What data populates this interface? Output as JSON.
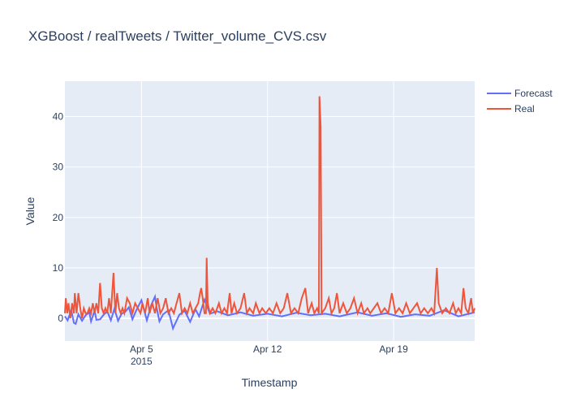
{
  "chart_data": {
    "type": "line",
    "title": "XGBoost / realTweets / Twitter_volume_CVS.csv",
    "xlabel": "Timestamp",
    "ylabel": "Value",
    "x_range": [
      "2015-03-31T18:00",
      "2015-04-23T12:00"
    ],
    "xlim_days": [
      -4.25,
      18.5
    ],
    "ylim": [
      -4.5,
      47
    ],
    "y_ticks": [
      0,
      10,
      20,
      30,
      40
    ],
    "x_ticks": [
      {
        "day": 0,
        "label": "Apr 5",
        "sublabel": "2015"
      },
      {
        "day": 7,
        "label": "Apr 12",
        "sublabel": ""
      },
      {
        "day": 14,
        "label": "Apr 19",
        "sublabel": ""
      }
    ],
    "grid": true,
    "legend_position": "top-right",
    "series": [
      {
        "name": "Forecast",
        "color": "#636efa",
        "points": [
          [
            -4.25,
            0.4
          ],
          [
            -4.1,
            -0.4
          ],
          [
            -3.9,
            1.6
          ],
          [
            -3.75,
            -0.9
          ],
          [
            -3.65,
            -1.1
          ],
          [
            -3.5,
            0.8
          ],
          [
            -3.3,
            -0.5
          ],
          [
            -3.1,
            0.6
          ],
          [
            -2.9,
            1.2
          ],
          [
            -2.8,
            -0.6
          ],
          [
            -2.6,
            1.5
          ],
          [
            -2.5,
            -0.3
          ],
          [
            -2.3,
            -0.2
          ],
          [
            -2.1,
            0.7
          ],
          [
            -1.9,
            1.4
          ],
          [
            -1.7,
            -0.4
          ],
          [
            -1.5,
            1.9
          ],
          [
            -1.3,
            -0.5
          ],
          [
            -1.1,
            0.9
          ],
          [
            -0.9,
            1.3
          ],
          [
            -0.7,
            2.2
          ],
          [
            -0.5,
            -0.2
          ],
          [
            -0.3,
            1.5
          ],
          [
            0.0,
            3.6
          ],
          [
            0.3,
            -0.4
          ],
          [
            0.55,
            2.7
          ],
          [
            0.75,
            4.3
          ],
          [
            0.85,
            2.0
          ],
          [
            1.0,
            -0.6
          ],
          [
            1.2,
            0.8
          ],
          [
            1.5,
            1.6
          ],
          [
            1.75,
            -2.0
          ],
          [
            1.8,
            -1.6
          ],
          [
            2.1,
            0.7
          ],
          [
            2.4,
            1.5
          ],
          [
            2.7,
            -0.7
          ],
          [
            3.0,
            1.8
          ],
          [
            3.2,
            0.4
          ],
          [
            3.5,
            3.7
          ],
          [
            3.8,
            0.9
          ],
          [
            4.2,
            1.4
          ],
          [
            4.8,
            0.6
          ],
          [
            5.5,
            1.2
          ],
          [
            6.2,
            0.5
          ],
          [
            7.0,
            0.9
          ],
          [
            7.8,
            0.4
          ],
          [
            8.6,
            1.1
          ],
          [
            9.4,
            0.6
          ],
          [
            10.2,
            0.9
          ],
          [
            11.0,
            0.4
          ],
          [
            12.0,
            1.2
          ],
          [
            12.8,
            0.5
          ],
          [
            13.6,
            1.0
          ],
          [
            14.4,
            0.3
          ],
          [
            15.2,
            0.8
          ],
          [
            16.0,
            0.5
          ],
          [
            16.8,
            1.6
          ],
          [
            17.6,
            0.4
          ],
          [
            18.5,
            1.2
          ]
        ]
      },
      {
        "name": "Real",
        "color": "#ef553b",
        "points": [
          [
            -4.25,
            1
          ],
          [
            -4.2,
            4
          ],
          [
            -4.12,
            1
          ],
          [
            -4.05,
            3
          ],
          [
            -3.95,
            0
          ],
          [
            -3.85,
            3
          ],
          [
            -3.75,
            1
          ],
          [
            -3.7,
            5
          ],
          [
            -3.6,
            1
          ],
          [
            -3.5,
            5
          ],
          [
            -3.4,
            2
          ],
          [
            -3.3,
            0
          ],
          [
            -3.2,
            2
          ],
          [
            -3.1,
            1
          ],
          [
            -3.0,
            1
          ],
          [
            -2.9,
            2
          ],
          [
            -2.8,
            1
          ],
          [
            -2.7,
            3
          ],
          [
            -2.6,
            1
          ],
          [
            -2.5,
            3
          ],
          [
            -2.4,
            1
          ],
          [
            -2.3,
            7
          ],
          [
            -2.2,
            2
          ],
          [
            -2.1,
            1
          ],
          [
            -2.0,
            2
          ],
          [
            -1.9,
            1
          ],
          [
            -1.8,
            4
          ],
          [
            -1.7,
            1
          ],
          [
            -1.55,
            9
          ],
          [
            -1.45,
            1
          ],
          [
            -1.35,
            5
          ],
          [
            -1.25,
            2
          ],
          [
            -1.15,
            1
          ],
          [
            -1.05,
            2
          ],
          [
            -0.95,
            1
          ],
          [
            -0.8,
            4
          ],
          [
            -0.65,
            3
          ],
          [
            -0.5,
            1
          ],
          [
            -0.35,
            3
          ],
          [
            -0.2,
            2
          ],
          [
            -0.05,
            1
          ],
          [
            0.05,
            3
          ],
          [
            0.2,
            1
          ],
          [
            0.35,
            4
          ],
          [
            0.45,
            1
          ],
          [
            0.6,
            3
          ],
          [
            0.75,
            1
          ],
          [
            0.9,
            4
          ],
          [
            1.05,
            1
          ],
          [
            1.2,
            2
          ],
          [
            1.35,
            4
          ],
          [
            1.5,
            1
          ],
          [
            1.65,
            2
          ],
          [
            1.8,
            1
          ],
          [
            1.95,
            3
          ],
          [
            2.1,
            5
          ],
          [
            2.25,
            1
          ],
          [
            2.4,
            2
          ],
          [
            2.55,
            1
          ],
          [
            2.7,
            3
          ],
          [
            2.85,
            1
          ],
          [
            3.0,
            2
          ],
          [
            3.15,
            3
          ],
          [
            3.25,
            5
          ],
          [
            3.32,
            6
          ],
          [
            3.4,
            4
          ],
          [
            3.5,
            1
          ],
          [
            3.58,
            1
          ],
          [
            3.62,
            12
          ],
          [
            3.68,
            3
          ],
          [
            3.8,
            1
          ],
          [
            3.95,
            2
          ],
          [
            4.1,
            1
          ],
          [
            4.3,
            3
          ],
          [
            4.45,
            1
          ],
          [
            4.6,
            2
          ],
          [
            4.75,
            1
          ],
          [
            4.9,
            5
          ],
          [
            5.0,
            1
          ],
          [
            5.15,
            3
          ],
          [
            5.3,
            1
          ],
          [
            5.5,
            2
          ],
          [
            5.7,
            5
          ],
          [
            5.85,
            1
          ],
          [
            6.0,
            2
          ],
          [
            6.2,
            1
          ],
          [
            6.35,
            3
          ],
          [
            6.55,
            1
          ],
          [
            6.7,
            2
          ],
          [
            6.9,
            1
          ],
          [
            7.1,
            2
          ],
          [
            7.3,
            1
          ],
          [
            7.5,
            3
          ],
          [
            7.7,
            1
          ],
          [
            7.9,
            2
          ],
          [
            8.1,
            5
          ],
          [
            8.3,
            1
          ],
          [
            8.5,
            2
          ],
          [
            8.7,
            1
          ],
          [
            8.9,
            4
          ],
          [
            9.1,
            6
          ],
          [
            9.25,
            1
          ],
          [
            9.45,
            3
          ],
          [
            9.6,
            1
          ],
          [
            9.75,
            2
          ],
          [
            9.85,
            1
          ],
          [
            9.88,
            44
          ],
          [
            9.95,
            38
          ],
          [
            10.0,
            1
          ],
          [
            10.2,
            2
          ],
          [
            10.4,
            4
          ],
          [
            10.55,
            1
          ],
          [
            10.7,
            2
          ],
          [
            10.85,
            5
          ],
          [
            11.0,
            1
          ],
          [
            11.2,
            3
          ],
          [
            11.4,
            1
          ],
          [
            11.6,
            2
          ],
          [
            11.8,
            4
          ],
          [
            12.0,
            1
          ],
          [
            12.2,
            3
          ],
          [
            12.35,
            1
          ],
          [
            12.55,
            2
          ],
          [
            12.7,
            1
          ],
          [
            12.9,
            2
          ],
          [
            13.1,
            3
          ],
          [
            13.3,
            1
          ],
          [
            13.5,
            2
          ],
          [
            13.7,
            1
          ],
          [
            13.9,
            5
          ],
          [
            14.1,
            1
          ],
          [
            14.3,
            2
          ],
          [
            14.5,
            1
          ],
          [
            14.7,
            3
          ],
          [
            14.9,
            1
          ],
          [
            15.1,
            2
          ],
          [
            15.3,
            3
          ],
          [
            15.5,
            1
          ],
          [
            15.7,
            2
          ],
          [
            15.9,
            1
          ],
          [
            16.1,
            2
          ],
          [
            16.25,
            1
          ],
          [
            16.4,
            10
          ],
          [
            16.5,
            3
          ],
          [
            16.7,
            1
          ],
          [
            16.9,
            2
          ],
          [
            17.1,
            1
          ],
          [
            17.3,
            3
          ],
          [
            17.45,
            1
          ],
          [
            17.6,
            2
          ],
          [
            17.75,
            1
          ],
          [
            17.88,
            6
          ],
          [
            18.0,
            2
          ],
          [
            18.15,
            1
          ],
          [
            18.3,
            4
          ],
          [
            18.4,
            1
          ],
          [
            18.5,
            2
          ]
        ]
      }
    ]
  }
}
